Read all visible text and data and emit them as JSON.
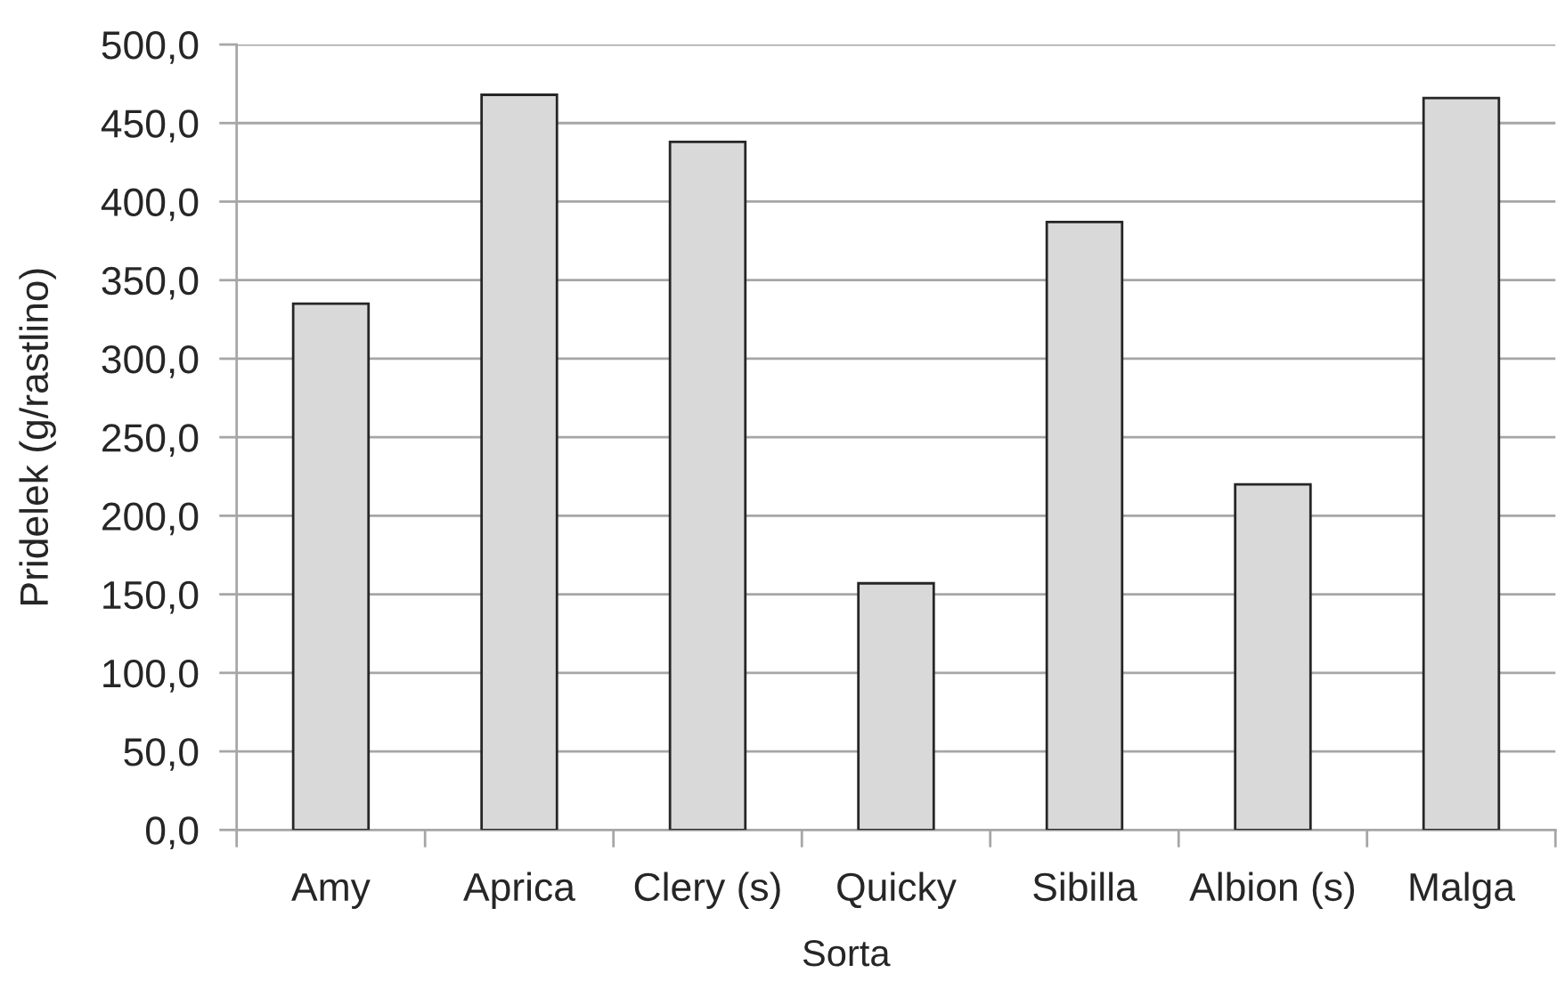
{
  "chart_data": {
    "type": "bar",
    "xlabel": "Sorta",
    "ylabel": "Pridelek (g/rastlino)",
    "categories": [
      "Amy",
      "Aprica",
      "Clery (s)",
      "Quicky",
      "Sibilla",
      "Albion (s)",
      "Malga"
    ],
    "values": [
      335,
      468,
      438,
      157,
      387,
      220,
      466
    ],
    "color": "#d9d9d9",
    "ylim": [
      0,
      500
    ],
    "yticks": [
      {
        "value": 0,
        "label": "0,0"
      },
      {
        "value": 50,
        "label": "50,0"
      },
      {
        "value": 100,
        "label": "100,0"
      },
      {
        "value": 150,
        "label": "150,0"
      },
      {
        "value": 200,
        "label": "200,0"
      },
      {
        "value": 250,
        "label": "250,0"
      },
      {
        "value": 300,
        "label": "300,0"
      },
      {
        "value": 350,
        "label": "350,0"
      },
      {
        "value": 400,
        "label": "400,0"
      },
      {
        "value": 450,
        "label": "450,0"
      },
      {
        "value": 500,
        "label": "500,0"
      }
    ],
    "grid": "y",
    "legend": false
  }
}
